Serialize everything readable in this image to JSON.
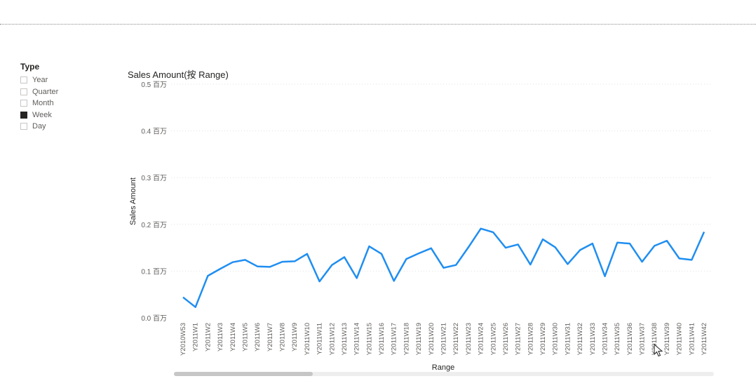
{
  "slicer": {
    "title": "Type",
    "items": [
      {
        "label": "Year",
        "checked": false
      },
      {
        "label": "Quarter",
        "checked": false
      },
      {
        "label": "Month",
        "checked": false
      },
      {
        "label": "Week",
        "checked": true
      },
      {
        "label": "Day",
        "checked": false
      }
    ]
  },
  "chart_data": {
    "type": "line",
    "title": "Sales Amount(按 Range)",
    "xlabel": "Range",
    "ylabel": "Sales Amount",
    "ylim": [
      0,
      0.5
    ],
    "yticks": [
      0,
      0.1,
      0.2,
      0.3,
      0.4,
      0.5
    ],
    "ytick_labels": [
      "0.0 百万",
      "0.1 百万",
      "0.2 百万",
      "0.3 百万",
      "0.4 百万",
      "0.5 百万"
    ],
    "grid": true,
    "line_color": "#1f8ef1",
    "categories": [
      "Y2010W53",
      "Y2011W1",
      "Y2011W2",
      "Y2011W3",
      "Y2011W4",
      "Y2011W5",
      "Y2011W6",
      "Y2011W7",
      "Y2011W8",
      "Y2011W9",
      "Y2011W10",
      "Y2011W11",
      "Y2011W12",
      "Y2011W13",
      "Y2011W14",
      "Y2011W15",
      "Y2011W16",
      "Y2011W17",
      "Y2011W18",
      "Y2011W19",
      "Y2011W20",
      "Y2011W21",
      "Y2011W22",
      "Y2011W23",
      "Y2011W24",
      "Y2011W25",
      "Y2011W26",
      "Y2011W27",
      "Y2011W28",
      "Y2011W29",
      "Y2011W30",
      "Y2011W31",
      "Y2011W32",
      "Y2011W33",
      "Y2011W34",
      "Y2011W35",
      "Y2011W36",
      "Y2011W37",
      "Y2011W38",
      "Y2011W39",
      "Y2011W40",
      "Y2011W41",
      "Y2011W42"
    ],
    "values": [
      0.044,
      0.023,
      0.09,
      0.105,
      0.119,
      0.124,
      0.11,
      0.109,
      0.12,
      0.121,
      0.137,
      0.078,
      0.113,
      0.13,
      0.085,
      0.153,
      0.137,
      0.079,
      0.126,
      0.138,
      0.149,
      0.107,
      0.113,
      0.151,
      0.191,
      0.183,
      0.15,
      0.157,
      0.114,
      0.168,
      0.151,
      0.115,
      0.145,
      0.159,
      0.089,
      0.161,
      0.159,
      0.12,
      0.154,
      0.165,
      0.127,
      0.124,
      0.184
    ]
  }
}
